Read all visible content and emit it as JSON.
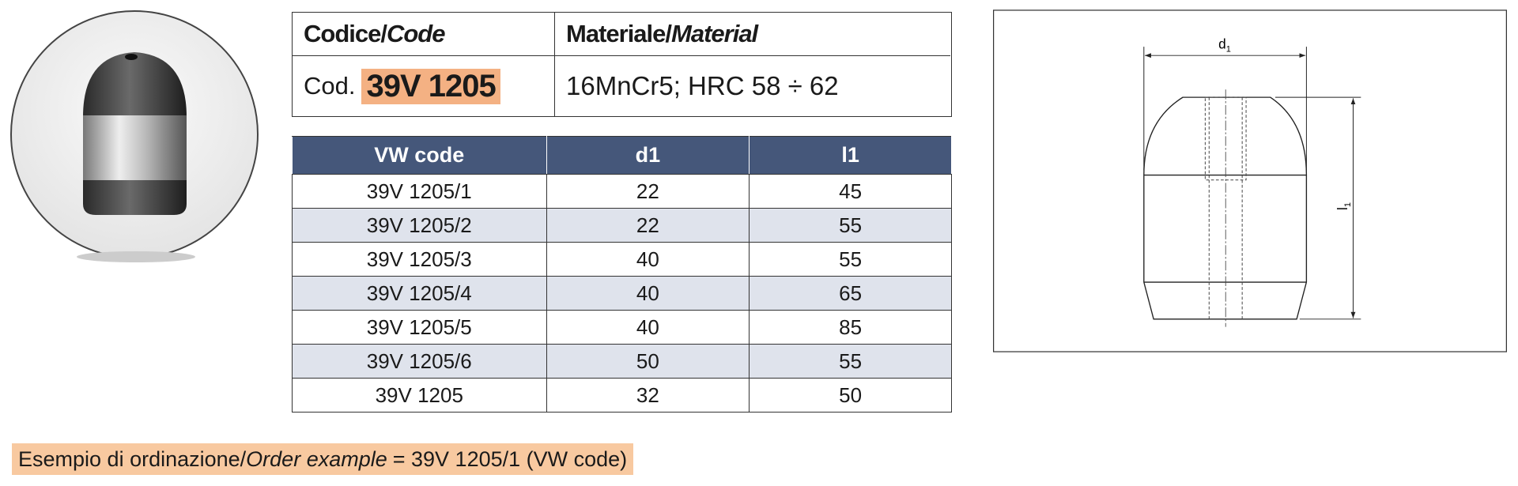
{
  "header": {
    "code_label": {
      "it": "Codice/",
      "en": "Code"
    },
    "material_label": {
      "it": "Materiale/",
      "en": "Material"
    },
    "code_prefix": "Cod.",
    "code": "39V 1205",
    "material": "16MnCr5; HRC 58 ÷ 62"
  },
  "table": {
    "columns": [
      "VW code",
      "d1",
      "l1"
    ],
    "rows": [
      [
        "39V 1205/1",
        22,
        45
      ],
      [
        "39V 1205/2",
        22,
        55
      ],
      [
        "39V 1205/3",
        40,
        55
      ],
      [
        "39V 1205/4",
        40,
        65
      ],
      [
        "39V 1205/5",
        40,
        85
      ],
      [
        "39V 1205/6",
        50,
        55
      ],
      [
        "39V 1205",
        32,
        50
      ]
    ]
  },
  "footer": {
    "it": "Esempio di ordinazione/",
    "en": "Order example",
    "rest": "= 39V 1205/1 (VW code)"
  },
  "drawing": {
    "d_label": {
      "main": "d",
      "sub": "1"
    },
    "l_label": {
      "main": "l",
      "sub": "1"
    }
  }
}
